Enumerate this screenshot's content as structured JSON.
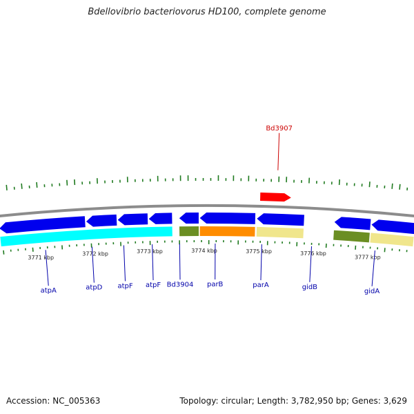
{
  "title": "Bdellovibrio bacteriovorus HD100, complete genome",
  "footer": {
    "accession": "Accession: NC_005363",
    "stats": "Topology: circular; Length: 3,782,950 bp; Genes: 3,629"
  },
  "colors": {
    "backbone": "#8c8c8c",
    "tick": "#1f7a1f",
    "gene_forward": "#ff0000",
    "gene_reverse": "#0000ee",
    "label_forward": "#cc0000",
    "label_reverse": "#0000aa",
    "cds_cyan": "#00ffff",
    "cds_olive": "#6b8e23",
    "cds_orange": "#ff8c00",
    "cds_khaki": "#f0e68c"
  },
  "scale": {
    "start_kbp": 3770.3,
    "end_kbp": 3777.8
  },
  "kbp_labels": [
    {
      "kbp": 3771,
      "text": "3771 kbp"
    },
    {
      "kbp": 3772,
      "text": "3772 kbp"
    },
    {
      "kbp": 3773,
      "text": "3773 kbp"
    },
    {
      "kbp": 3774,
      "text": "3774 kbp"
    },
    {
      "kbp": 3775,
      "text": "3775 kbp"
    },
    {
      "kbp": 3776,
      "text": "3776 kbp"
    },
    {
      "kbp": 3777,
      "text": "3777 kbp"
    }
  ],
  "forward_genes": [
    {
      "name": "Bd3907",
      "start_kbp": 3775.0,
      "end_kbp": 3775.55
    }
  ],
  "reverse_genes": [
    {
      "name": "atpA",
      "start_kbp": 3770.3,
      "end_kbp": 3771.85
    },
    {
      "name": "atpD",
      "start_kbp": 3771.87,
      "end_kbp": 3772.42
    },
    {
      "name": "atpF",
      "start_kbp": 3772.44,
      "end_kbp": 3772.98
    },
    {
      "name": "atpF",
      "start_kbp": 3773.0,
      "end_kbp": 3773.42
    },
    {
      "name": "Bd3904",
      "start_kbp": 3773.55,
      "end_kbp": 3773.9
    },
    {
      "name": "parB",
      "start_kbp": 3773.92,
      "end_kbp": 3774.92
    },
    {
      "name": "parA",
      "start_kbp": 3774.95,
      "end_kbp": 3775.8
    },
    {
      "name": "gidB",
      "start_kbp": 3776.35,
      "end_kbp": 3777.0
    },
    {
      "name": "gidA",
      "start_kbp": 3777.02,
      "end_kbp": 3777.8
    }
  ],
  "cds_blocks": [
    {
      "start_kbp": 3770.3,
      "end_kbp": 3773.42,
      "color": "cds_cyan"
    },
    {
      "start_kbp": 3773.55,
      "end_kbp": 3773.9,
      "color": "cds_olive"
    },
    {
      "start_kbp": 3773.92,
      "end_kbp": 3774.92,
      "color": "cds_orange"
    },
    {
      "start_kbp": 3774.95,
      "end_kbp": 3775.8,
      "color": "cds_khaki"
    },
    {
      "start_kbp": 3776.35,
      "end_kbp": 3777.0,
      "color": "cds_olive"
    },
    {
      "start_kbp": 3777.02,
      "end_kbp": 3777.8,
      "color": "cds_khaki"
    }
  ],
  "gene_labels": [
    {
      "text": "Bd3907",
      "kbp": 3775.3,
      "strand": "forward"
    },
    {
      "text": "atpA",
      "kbp": 3771.1,
      "strand": "reverse"
    },
    {
      "text": "atpD",
      "kbp": 3771.95,
      "strand": "reverse"
    },
    {
      "text": "atpF",
      "kbp": 3772.53,
      "strand": "reverse"
    },
    {
      "text": "atpF",
      "kbp": 3773.05,
      "strand": "reverse"
    },
    {
      "text": "Bd3904",
      "kbp": 3773.55,
      "strand": "reverse"
    },
    {
      "text": "parB",
      "kbp": 3774.2,
      "strand": "reverse"
    },
    {
      "text": "parA",
      "kbp": 3775.05,
      "strand": "reverse"
    },
    {
      "text": "gidB",
      "kbp": 3775.96,
      "strand": "reverse"
    },
    {
      "text": "gidA",
      "kbp": 3777.12,
      "strand": "reverse"
    }
  ]
}
